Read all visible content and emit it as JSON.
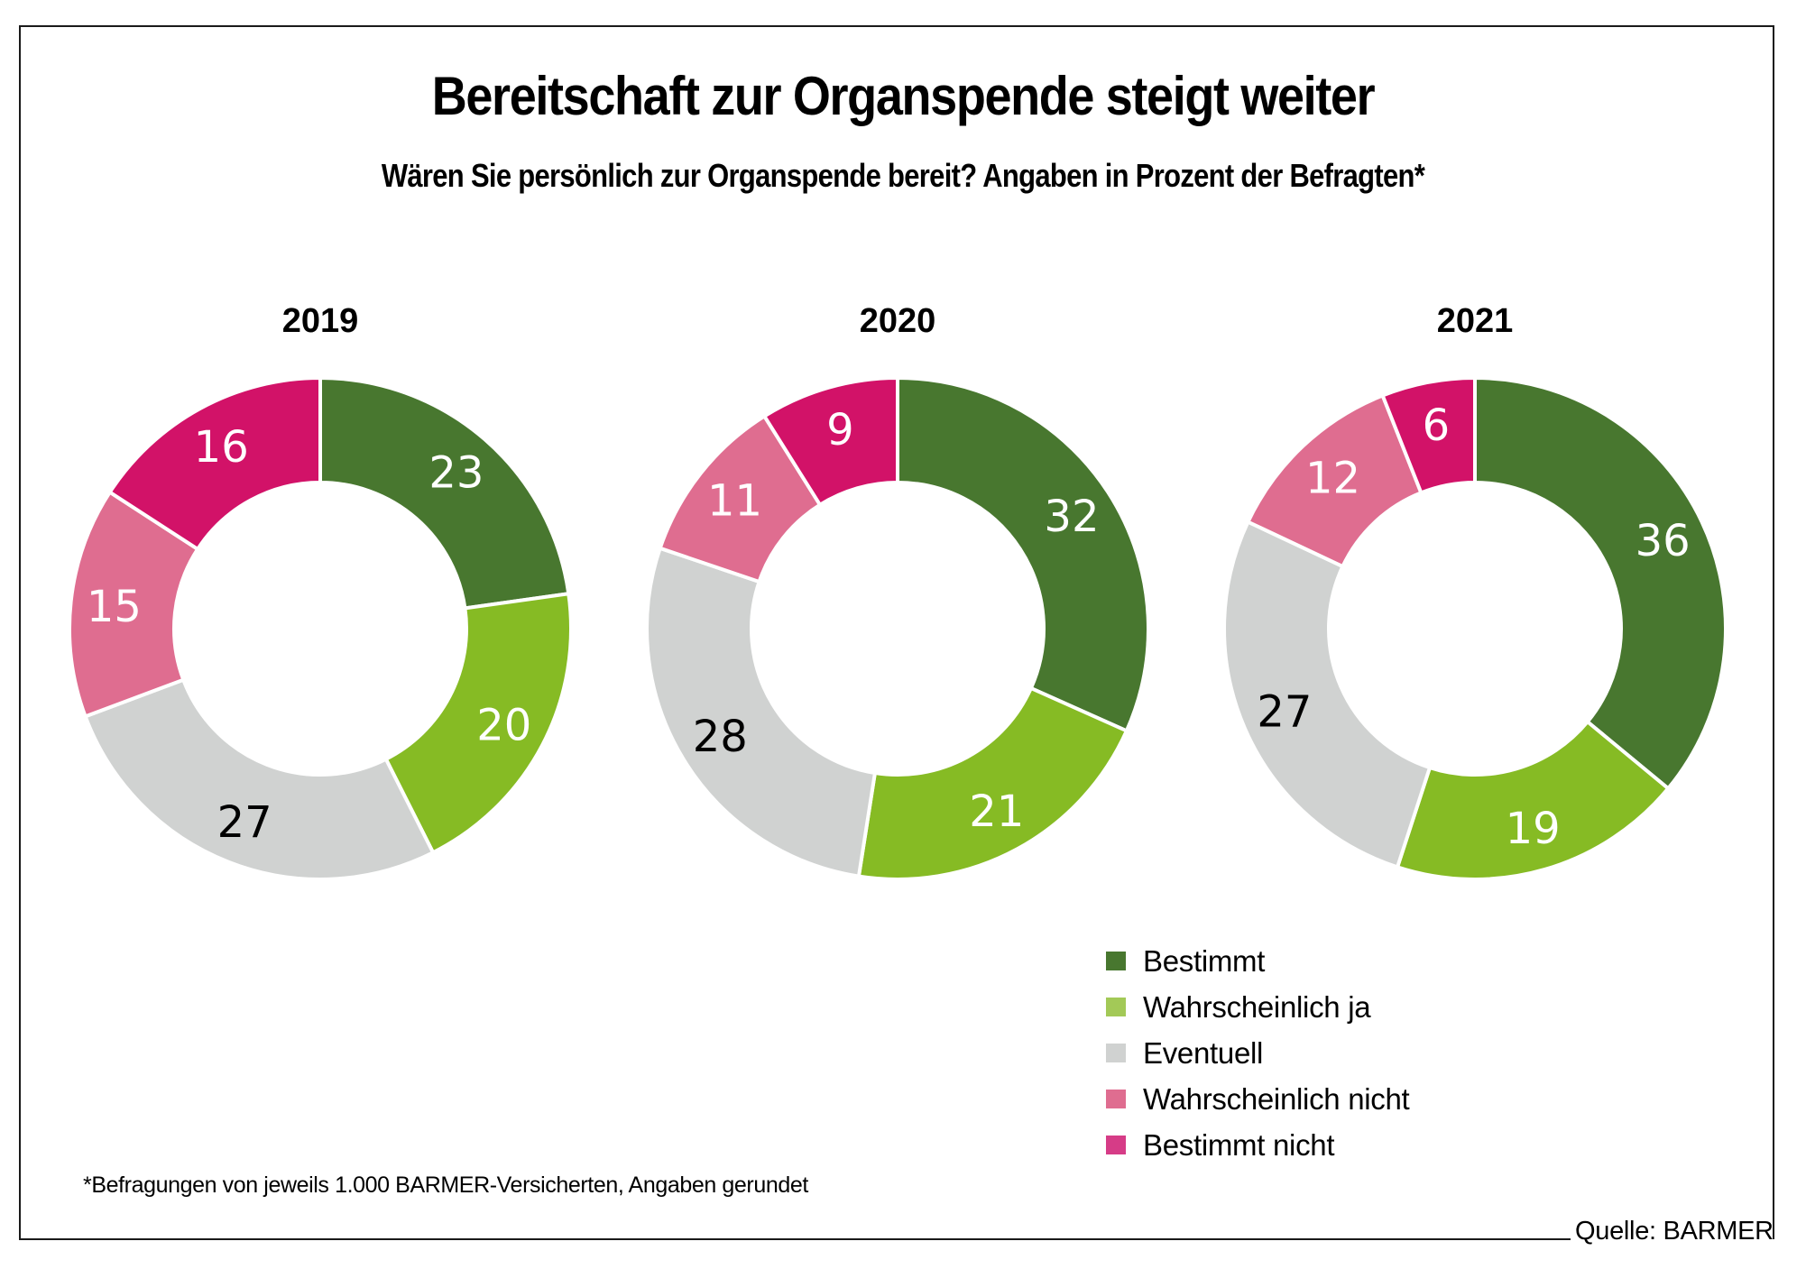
{
  "title": "Bereitschaft zur Organspende steigt weiter",
  "subtitle": "Wären Sie persönlich zur Organspende bereit? Angaben in Prozent der Befragten*",
  "footnote": "*Befragungen von jeweils 1.000 BARMER-Versicherten, Angaben gerundet",
  "source": "Quelle: BARMER",
  "colors": {
    "Bestimmt": "#48772f",
    "Wahrscheinlich ja": "#86bb24",
    "Eventuell": "#d0d2d1",
    "Wahrscheinlich nicht": "#df6d90",
    "Bestimmt nicht": "#d21268"
  },
  "legend": [
    {
      "label": "Bestimmt",
      "color": "#48772f"
    },
    {
      "label": "Wahrscheinlich ja",
      "color": "#a3c957"
    },
    {
      "label": "Eventuell",
      "color": "#d0d2d1"
    },
    {
      "label": "Wahrscheinlich nicht",
      "color": "#df6d90"
    },
    {
      "label": "Bestimmt nicht",
      "color": "#d63c87"
    }
  ],
  "chart_data": [
    {
      "type": "pie",
      "variant": "donut",
      "title": "2019",
      "categories": [
        "Bestimmt",
        "Wahrscheinlich ja",
        "Eventuell",
        "Wahrscheinlich nicht",
        "Bestimmt nicht"
      ],
      "values": [
        23,
        20,
        27,
        15,
        16
      ],
      "unit": "%",
      "start": "12 o'clock, clockwise"
    },
    {
      "type": "pie",
      "variant": "donut",
      "title": "2020",
      "categories": [
        "Bestimmt",
        "Wahrscheinlich ja",
        "Eventuell",
        "Wahrscheinlich nicht",
        "Bestimmt nicht"
      ],
      "values": [
        32,
        21,
        28,
        11,
        9
      ],
      "unit": "%",
      "start": "12 o'clock, clockwise"
    },
    {
      "type": "pie",
      "variant": "donut",
      "title": "2021",
      "categories": [
        "Bestimmt",
        "Wahrscheinlich ja",
        "Eventuell",
        "Wahrscheinlich nicht",
        "Bestimmt nicht"
      ],
      "values": [
        36,
        19,
        27,
        12,
        6
      ],
      "unit": "%",
      "start": "12 o'clock, clockwise"
    }
  ]
}
